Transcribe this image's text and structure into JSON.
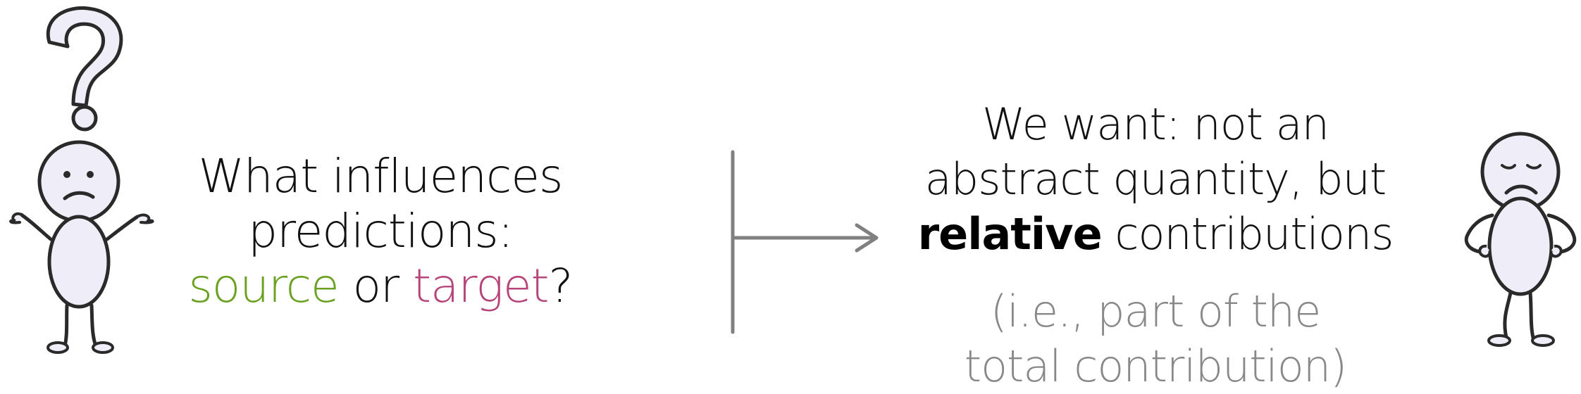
{
  "question": {
    "line1": "What influences",
    "line2": "predictions:",
    "source": "source",
    "or": "or",
    "target": "target",
    "qmark": "?"
  },
  "answer": {
    "line1": "We want: not an",
    "line2": "abstract quantity, but",
    "relative": "relative",
    "line3_rest": "contributions"
  },
  "note": {
    "line1": "(i.e., part of the",
    "line2": "total contribution)"
  },
  "colors": {
    "source": "#6aa121",
    "target": "#b5457a",
    "note": "#888888",
    "arrow": "#808080",
    "figure_fill": "#efeef8",
    "figure_stroke": "#2a2a2a"
  }
}
